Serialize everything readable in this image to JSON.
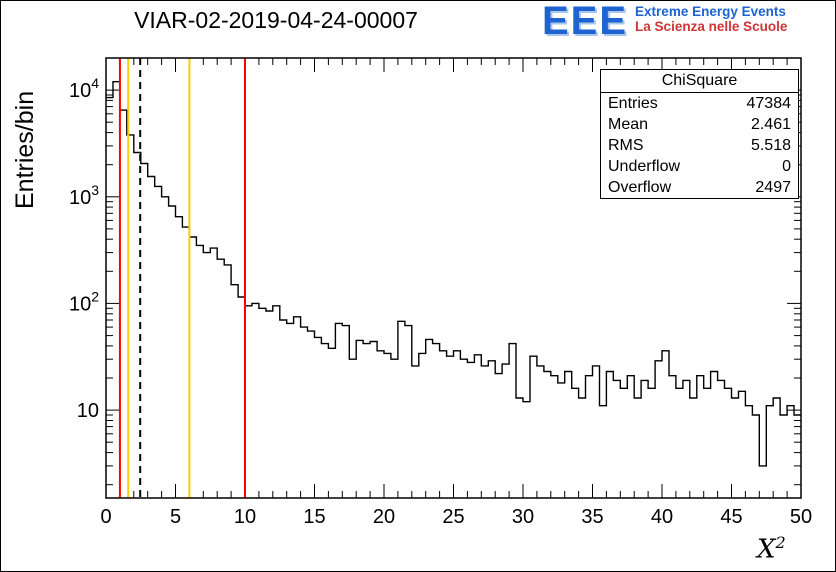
{
  "title": "VIAR-02-2019-04-24-00007",
  "logo": {
    "acronym": "EEE",
    "line1": "Extreme Energy Events",
    "line2": "La Scienza nelle Scuole",
    "color_primary": "#1e63d0",
    "color_secondary": "#d03438"
  },
  "axis": {
    "y_label": "Entries/bin",
    "x_label": "X",
    "x_exponent": "2"
  },
  "stats": {
    "title": "ChiSquare",
    "rows": [
      {
        "label": "Entries",
        "value": "47384"
      },
      {
        "label": "Mean",
        "value": "2.461"
      },
      {
        "label": "RMS",
        "value": "5.518"
      },
      {
        "label": "Underflow",
        "value": "0"
      },
      {
        "label": "Overflow",
        "value": "2497"
      }
    ]
  },
  "chart_data": {
    "type": "bar",
    "variant": "step-histogram",
    "title": "VIAR-02-2019-04-24-00007",
    "xlabel": "X^2",
    "ylabel": "Entries/bin",
    "y_scale": "log",
    "xlim": [
      0,
      50
    ],
    "ylim": [
      1.5,
      20000
    ],
    "bin_width": 0.5,
    "x_ticks": [
      0,
      5,
      10,
      15,
      20,
      25,
      30,
      35,
      40,
      45,
      50
    ],
    "y_ticks": [
      {
        "v": 10,
        "base": "10",
        "exp": ""
      },
      {
        "v": 100,
        "base": "10",
        "exp": "2"
      },
      {
        "v": 1000,
        "base": "10",
        "exp": "3"
      },
      {
        "v": 10000,
        "base": "10",
        "exp": "4"
      }
    ],
    "line_color": "#000000",
    "values": [
      8500,
      12000,
      6500,
      3800,
      2600,
      2050,
      1550,
      1250,
      1000,
      820,
      650,
      520,
      420,
      350,
      300,
      330,
      260,
      230,
      150,
      115,
      95,
      100,
      90,
      85,
      95,
      70,
      65,
      75,
      60,
      55,
      48,
      42,
      38,
      65,
      62,
      30,
      45,
      42,
      44,
      36,
      34,
      30,
      68,
      62,
      26,
      34,
      46,
      42,
      36,
      32,
      36,
      30,
      28,
      33,
      26,
      29,
      22,
      27,
      42,
      13,
      12,
      32,
      26,
      23,
      21,
      18,
      23,
      16,
      13,
      21,
      26,
      11,
      23,
      19,
      16,
      21,
      13,
      19,
      16,
      29,
      36,
      21,
      16,
      19,
      13,
      21,
      16,
      23,
      19,
      16,
      13,
      15,
      11,
      9,
      3,
      11,
      13,
      9,
      11,
      9
    ],
    "markers": [
      {
        "x": 1.0,
        "color": "#ff0000",
        "style": "solid"
      },
      {
        "x": 1.6,
        "color": "#ffcc00",
        "style": "solid"
      },
      {
        "x": 2.461,
        "color": "#000000",
        "style": "dashed"
      },
      {
        "x": 6.0,
        "color": "#ffcc00",
        "style": "solid"
      },
      {
        "x": 10.0,
        "color": "#ff0000",
        "style": "solid"
      }
    ]
  }
}
